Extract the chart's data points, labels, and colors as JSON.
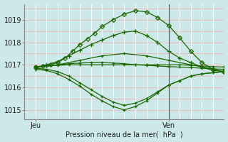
{
  "xlabel": "Pression niveau de la mer(  hPa  )",
  "background_color": "#cce8e8",
  "grid_color_h": "#f0b0b0",
  "grid_color_v": "#ffffff",
  "line_color": "#1a6600",
  "ylim": [
    1014.6,
    1019.7
  ],
  "xlim": [
    0,
    54
  ],
  "xtick_positions": [
    3,
    39
  ],
  "xtick_labels": [
    "Jeu",
    "Ven"
  ],
  "ytick_positions": [
    1015,
    1016,
    1017,
    1018,
    1019
  ],
  "ytick_labels": [
    "1015",
    "1016",
    "1017",
    "1018",
    "1019"
  ],
  "vline_x": 39,
  "series": [
    {
      "x": [
        3,
        5,
        7,
        9,
        11,
        13,
        15,
        17,
        19,
        21,
        24,
        27,
        30,
        33,
        36,
        39,
        42,
        45,
        48,
        51,
        54
      ],
      "y": [
        1016.9,
        1016.95,
        1017.0,
        1017.1,
        1017.3,
        1017.6,
        1017.9,
        1018.15,
        1018.4,
        1018.7,
        1019.0,
        1019.25,
        1019.4,
        1019.35,
        1019.1,
        1018.75,
        1018.2,
        1017.6,
        1017.1,
        1016.8,
        1016.7
      ],
      "marker": "D",
      "ms": 3
    },
    {
      "x": [
        3,
        6,
        9,
        12,
        15,
        18,
        21,
        24,
        27,
        30,
        33,
        36,
        39,
        42,
        45,
        48,
        51,
        54
      ],
      "y": [
        1016.85,
        1017.0,
        1017.15,
        1017.4,
        1017.65,
        1017.9,
        1018.1,
        1018.3,
        1018.45,
        1018.5,
        1018.3,
        1018.0,
        1017.6,
        1017.3,
        1017.1,
        1016.9,
        1016.75,
        1016.7
      ],
      "marker": "+",
      "ms": 4
    },
    {
      "x": [
        3,
        6,
        9,
        12,
        15,
        18,
        21,
        24,
        27,
        30,
        33,
        36,
        39,
        42,
        45,
        48,
        51,
        54
      ],
      "y": [
        1016.9,
        1016.95,
        1017.0,
        1017.05,
        1017.08,
        1017.1,
        1017.1,
        1017.08,
        1017.05,
        1017.0,
        1016.98,
        1016.95,
        1016.92,
        1016.9,
        1016.88,
        1016.85,
        1016.82,
        1016.8
      ],
      "marker": "+",
      "ms": 3
    },
    {
      "x": [
        3,
        6,
        9,
        12,
        15,
        18,
        21,
        24,
        27,
        30,
        33,
        36,
        39,
        42,
        45,
        48,
        51,
        54
      ],
      "y": [
        1016.92,
        1016.95,
        1016.98,
        1017.0,
        1017.0,
        1017.0,
        1017.0,
        1017.0,
        1017.0,
        1017.0,
        1017.0,
        1017.0,
        1017.0,
        1017.0,
        1016.98,
        1016.95,
        1016.92,
        1016.9
      ],
      "marker": "+",
      "ms": 3
    },
    {
      "x": [
        3,
        6,
        9,
        12,
        15,
        18,
        21,
        24,
        27,
        30,
        33,
        36,
        39,
        42,
        45,
        48,
        51,
        54
      ],
      "y": [
        1016.85,
        1016.8,
        1016.7,
        1016.5,
        1016.2,
        1015.9,
        1015.6,
        1015.35,
        1015.2,
        1015.3,
        1015.5,
        1015.8,
        1016.1,
        1016.3,
        1016.5,
        1016.6,
        1016.65,
        1016.7
      ],
      "marker": "+",
      "ms": 3
    },
    {
      "x": [
        3,
        6,
        9,
        12,
        15,
        18,
        21,
        24,
        27,
        30,
        33,
        36,
        39,
        42,
        45,
        48,
        51,
        54
      ],
      "y": [
        1016.8,
        1016.75,
        1016.6,
        1016.35,
        1016.05,
        1015.7,
        1015.4,
        1015.15,
        1015.0,
        1015.15,
        1015.4,
        1015.75,
        1016.1,
        1016.3,
        1016.5,
        1016.6,
        1016.65,
        1016.7
      ],
      "marker": "+",
      "ms": 3
    },
    {
      "x": [
        3,
        9,
        15,
        21,
        27,
        33,
        39,
        45,
        51
      ],
      "y": [
        1016.88,
        1017.0,
        1017.2,
        1017.4,
        1017.5,
        1017.4,
        1017.2,
        1017.0,
        1016.82
      ],
      "marker": "+",
      "ms": 3
    }
  ]
}
